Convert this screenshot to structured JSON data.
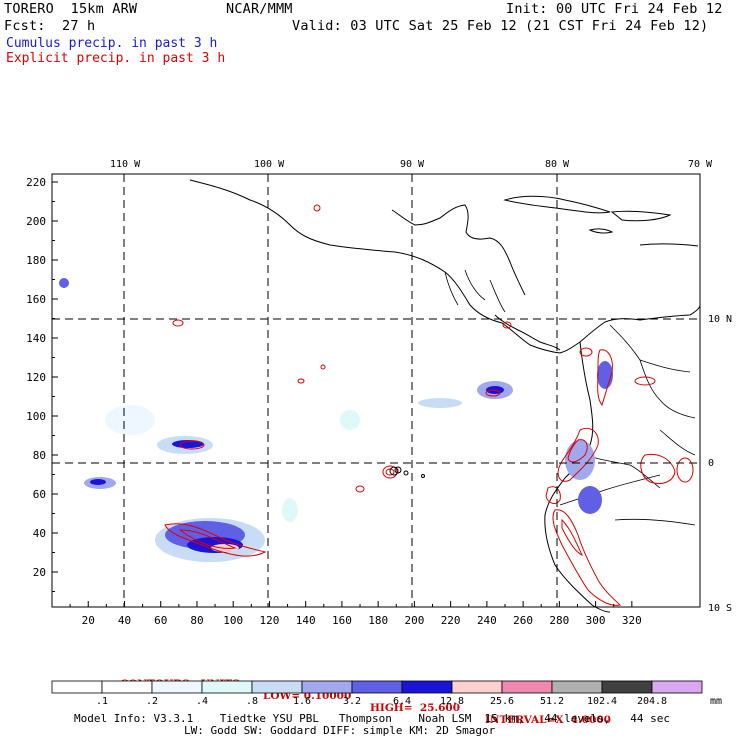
{
  "header": {
    "model": "TORERO  15km ARW",
    "org": "NCAR/MMM",
    "init": "Init: 00 UTC Fri 24 Feb 12",
    "fcst_label": "Fcst:",
    "fcst_value": "27 h",
    "valid": "Valid: 03 UTC Sat 25 Feb 12 (21 CST Fri 24 Feb 12)"
  },
  "legend": {
    "cumulus": "Cumulus precip. in past 3 h",
    "explicit": "Explicit precip. in past 3 h",
    "cumulus_color": "#1a1ad6",
    "explicit_color": "#e00000"
  },
  "map": {
    "lon_labels": [
      "110 W",
      "100 W",
      "90 W",
      "80 W",
      "70 W"
    ],
    "lat_labels": [
      "10 N",
      "0",
      "10 S"
    ],
    "x_ticks": [
      "20",
      "40",
      "60",
      "80",
      "100",
      "120",
      "140",
      "160",
      "180",
      "200",
      "220",
      "240",
      "260",
      "280",
      "300",
      "320"
    ],
    "y_ticks": [
      "20",
      "40",
      "60",
      "80",
      "100",
      "120",
      "140",
      "160",
      "180",
      "200",
      "220"
    ]
  },
  "contour_info": {
    "contours": "CONTOURS:  UNITS=mm",
    "low": "LOW= 0.10000",
    "high": "HIGH=  25.600",
    "interval": "INTERVAL=X  4.0000"
  },
  "colorbar": {
    "labels": [
      ".1",
      ".2",
      ".4",
      ".8",
      "1.6",
      "3.2",
      "6.4",
      "12.8",
      "25.6",
      "51.2",
      "102.4",
      "204.8"
    ],
    "colors": [
      "#ffffff",
      "#ffffff",
      "#eef7ff",
      "#dff8f8",
      "#c8ddf5",
      "#a0a8ee",
      "#6060e6",
      "#1a14d8",
      "#ffd0d0",
      "#f088b0",
      "#b0b0b0",
      "#404040",
      "#d8a8f0"
    ],
    "unit": "mm"
  },
  "footer": {
    "line1": "Model Info: V3.3.1    Tiedtke YSU PBL   Thompson    Noah LSM  15 km,   44 levels,   44 sec",
    "line2": "LW: Godd SW: Goddard DIFF: simple KM: 2D Smagor"
  }
}
